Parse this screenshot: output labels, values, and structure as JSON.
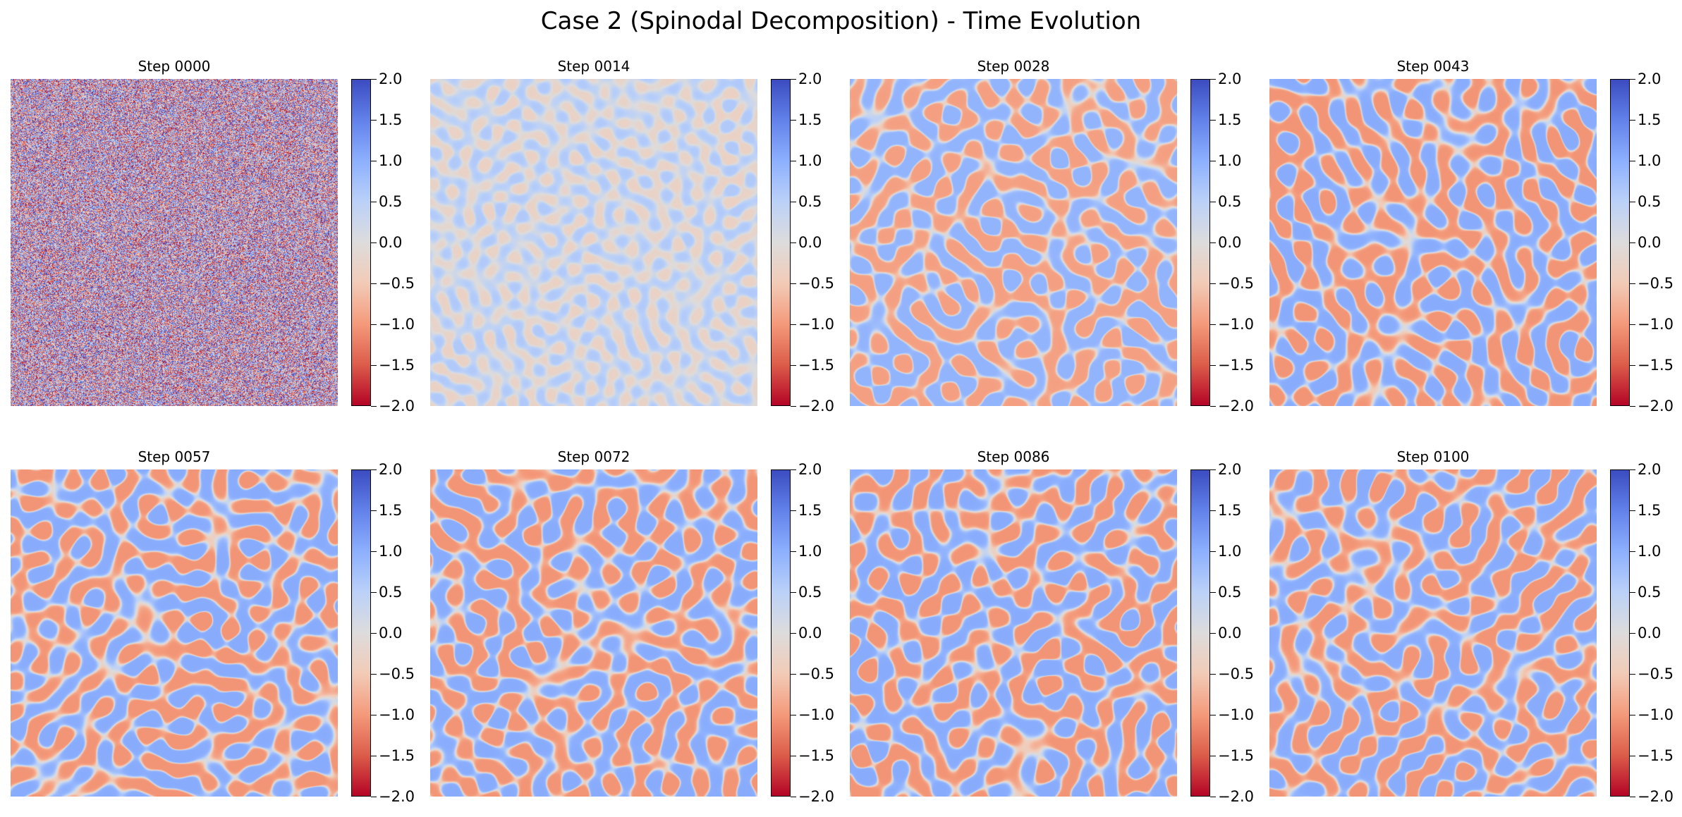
{
  "figure": {
    "title": "Case 2 (Spinodal Decomposition) - Time Evolution"
  },
  "chart_data": {
    "type": "heatmap",
    "colormap": "coolwarm_r",
    "value_range": [
      -2.0,
      2.0
    ],
    "colorbar_ticks": [
      2.0,
      1.5,
      1.0,
      0.5,
      0.0,
      -0.5,
      -1.0,
      -1.5,
      -2.0
    ],
    "colorbar_tick_labels": [
      "2.0",
      "1.5",
      "1.0",
      "0.5",
      "0.0",
      "−0.5",
      "−1.0",
      "−1.5",
      "−2.0"
    ],
    "axes_visible": false,
    "panels": [
      {
        "title": "Step 0000",
        "step": 0,
        "pattern": "random noise",
        "amplitude": 1.0
      },
      {
        "title": "Step 0014",
        "step": 14,
        "pattern": "fine labyrinth",
        "amplitude": 0.45
      },
      {
        "title": "Step 0028",
        "step": 28,
        "pattern": "labyrinth",
        "amplitude": 0.9
      },
      {
        "title": "Step 0043",
        "step": 43,
        "pattern": "labyrinth",
        "amplitude": 1.0
      },
      {
        "title": "Step 0057",
        "step": 57,
        "pattern": "labyrinth",
        "amplitude": 1.0
      },
      {
        "title": "Step 0072",
        "step": 72,
        "pattern": "labyrinth",
        "amplitude": 1.0
      },
      {
        "title": "Step 0086",
        "step": 86,
        "pattern": "labyrinth",
        "amplitude": 1.0
      },
      {
        "title": "Step 0100",
        "step": 100,
        "pattern": "labyrinth",
        "amplitude": 1.0
      }
    ]
  }
}
